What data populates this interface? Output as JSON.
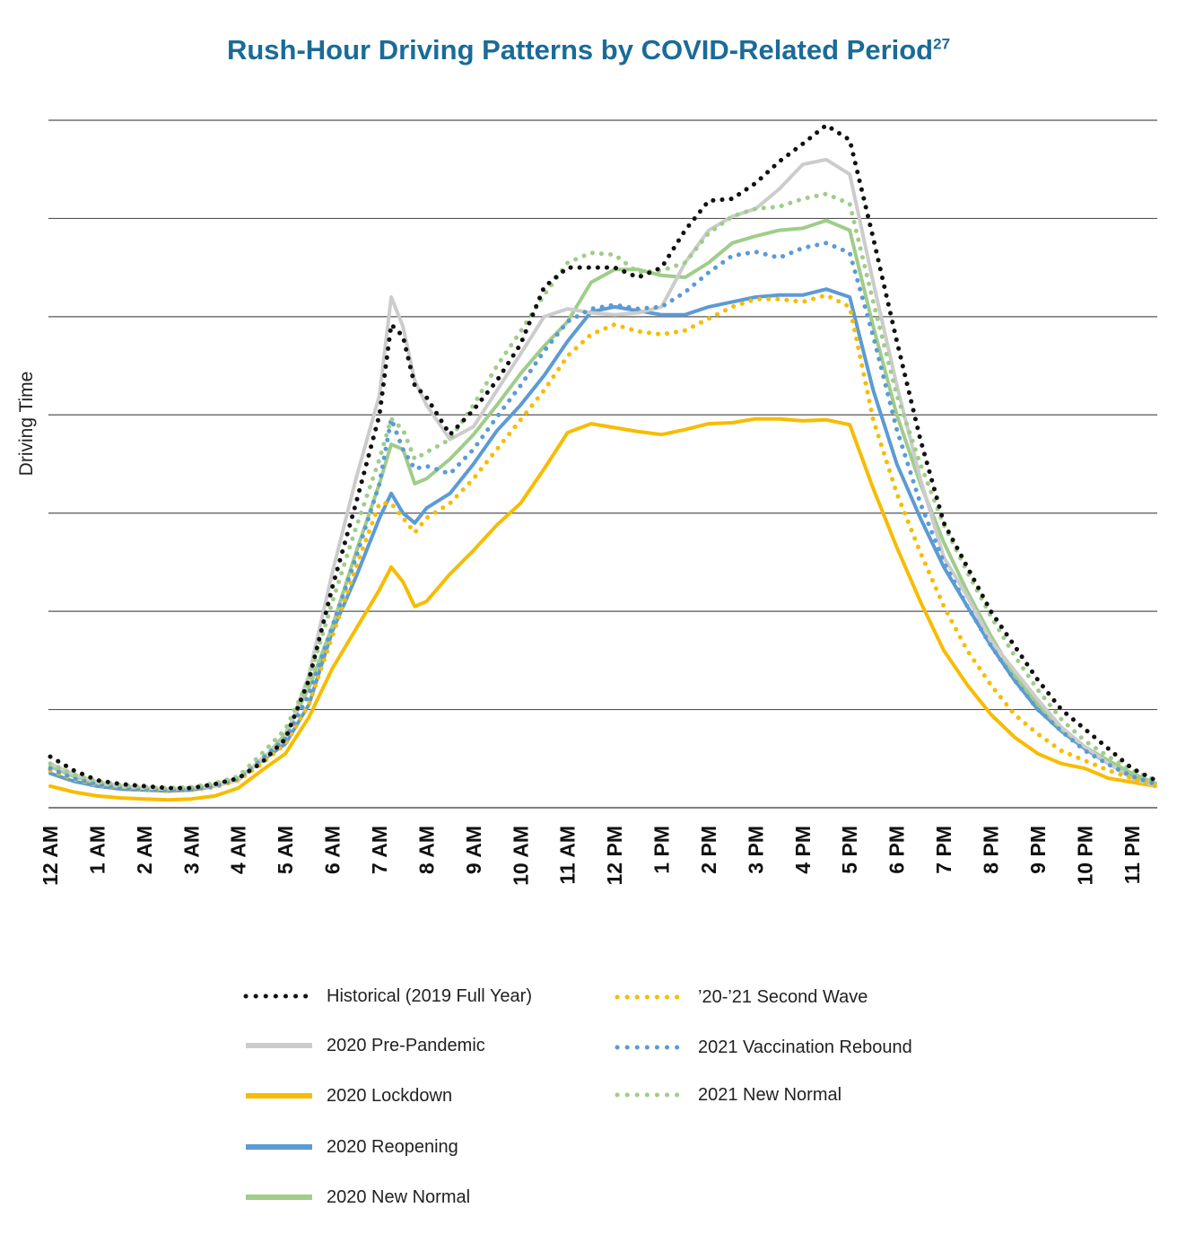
{
  "colors": {
    "historical": "#111111",
    "pre_pandemic": "#cccccc",
    "lockdown": "#f7bc00",
    "reopening": "#5b9bd5",
    "new_normal_2020": "#9fcd8a",
    "second_wave": "#f7bc00",
    "vaccination": "#5b9bd5",
    "new_normal_2021": "#9fcd8a",
    "title": "#1a6b98",
    "grid": "#555555"
  },
  "chart_data": {
    "type": "line",
    "title": "Rush-Hour Driving Patterns by COVID-Related Period",
    "title_footnote": "27",
    "xlabel": "",
    "ylabel": "Driving Time",
    "ylim": [
      0,
      7
    ],
    "grid": true,
    "legend_position": "bottom",
    "categories": [
      "12 AM",
      "1 AM",
      "2 AM",
      "3 AM",
      "4 AM",
      "5 AM",
      "6 AM",
      "7 AM",
      "8 AM",
      "9 AM",
      "10 AM",
      "11 AM",
      "12 PM",
      "1 PM",
      "2 PM",
      "3 PM",
      "4 PM",
      "5 PM",
      "6 PM",
      "7 PM",
      "8 PM",
      "9 PM",
      "10 PM",
      "11 PM"
    ],
    "x": [
      0,
      0.5,
      1,
      1.5,
      2,
      2.5,
      3,
      3.5,
      4,
      4.5,
      5,
      5.5,
      6,
      6.5,
      7,
      7.25,
      7.5,
      7.75,
      8,
      8.5,
      9,
      9.5,
      10,
      10.5,
      11,
      11.5,
      12,
      12.5,
      13,
      13.5,
      14,
      14.5,
      15,
      15.5,
      16,
      16.5,
      17,
      17.5,
      18,
      18.5,
      19,
      19.5,
      20,
      20.5,
      21,
      21.5,
      22,
      22.5,
      23,
      23.5
    ],
    "series": [
      {
        "name": "Historical (2019 Full Year)",
        "style": "dotted",
        "color_key": "historical",
        "values": [
          0.52,
          0.38,
          0.28,
          0.24,
          0.22,
          0.2,
          0.2,
          0.24,
          0.3,
          0.46,
          0.7,
          1.3,
          2.25,
          3.1,
          4.0,
          4.92,
          4.8,
          4.3,
          4.18,
          3.8,
          4.05,
          4.35,
          4.72,
          5.3,
          5.5,
          5.5,
          5.5,
          5.4,
          5.5,
          5.88,
          6.18,
          6.2,
          6.36,
          6.58,
          6.76,
          6.95,
          6.8,
          5.8,
          4.75,
          3.75,
          2.9,
          2.45,
          2.0,
          1.65,
          1.3,
          1.0,
          0.8,
          0.6,
          0.4,
          0.28
        ]
      },
      {
        "name": "2020 Pre-Pandemic",
        "style": "solid",
        "color_key": "pre_pandemic",
        "values": [
          0.45,
          0.34,
          0.26,
          0.22,
          0.2,
          0.19,
          0.2,
          0.22,
          0.28,
          0.5,
          0.7,
          1.35,
          2.4,
          3.35,
          4.2,
          5.2,
          4.9,
          4.35,
          4.1,
          3.75,
          3.88,
          4.25,
          4.62,
          5.0,
          5.08,
          5.04,
          5.02,
          5.04,
          5.1,
          5.55,
          5.88,
          6.02,
          6.1,
          6.3,
          6.55,
          6.6,
          6.45,
          5.35,
          4.3,
          3.35,
          2.55,
          2.15,
          1.7,
          1.4,
          1.1,
          0.82,
          0.62,
          0.45,
          0.3,
          0.22
        ]
      },
      {
        "name": "2020 Lockdown",
        "style": "solid",
        "color_key": "lockdown",
        "values": [
          0.22,
          0.16,
          0.12,
          0.1,
          0.09,
          0.08,
          0.09,
          0.12,
          0.2,
          0.38,
          0.55,
          0.92,
          1.42,
          1.82,
          2.22,
          2.45,
          2.3,
          2.05,
          2.1,
          2.38,
          2.62,
          2.88,
          3.1,
          3.45,
          3.82,
          3.91,
          3.87,
          3.83,
          3.8,
          3.85,
          3.91,
          3.92,
          3.96,
          3.96,
          3.94,
          3.95,
          3.9,
          3.25,
          2.65,
          2.1,
          1.6,
          1.25,
          0.95,
          0.72,
          0.55,
          0.45,
          0.4,
          0.3,
          0.26,
          0.22
        ]
      },
      {
        "name": "2020 Reopening",
        "style": "solid",
        "color_key": "reopening",
        "values": [
          0.35,
          0.27,
          0.22,
          0.19,
          0.18,
          0.17,
          0.18,
          0.22,
          0.3,
          0.48,
          0.65,
          1.05,
          1.8,
          2.35,
          2.95,
          3.2,
          3.0,
          2.9,
          3.05,
          3.2,
          3.5,
          3.84,
          4.1,
          4.4,
          4.75,
          5.05,
          5.1,
          5.06,
          5.02,
          5.02,
          5.1,
          5.15,
          5.2,
          5.22,
          5.22,
          5.28,
          5.2,
          4.25,
          3.5,
          2.95,
          2.45,
          2.05,
          1.65,
          1.3,
          1.0,
          0.78,
          0.6,
          0.45,
          0.32,
          0.22
        ]
      },
      {
        "name": "2020 New Normal",
        "style": "solid",
        "color_key": "new_normal_2020",
        "values": [
          0.42,
          0.32,
          0.25,
          0.21,
          0.2,
          0.19,
          0.2,
          0.23,
          0.3,
          0.48,
          0.75,
          1.22,
          1.85,
          2.6,
          3.3,
          3.7,
          3.65,
          3.3,
          3.35,
          3.55,
          3.8,
          4.1,
          4.42,
          4.7,
          4.95,
          5.35,
          5.48,
          5.48,
          5.42,
          5.4,
          5.55,
          5.75,
          5.82,
          5.88,
          5.9,
          5.98,
          5.88,
          4.9,
          4.0,
          3.3,
          2.7,
          2.2,
          1.75,
          1.35,
          1.05,
          0.8,
          0.62,
          0.48,
          0.35,
          0.25
        ]
      },
      {
        "name": "’20-’21 Second Wave",
        "style": "dotted",
        "color_key": "second_wave",
        "values": [
          0.38,
          0.29,
          0.23,
          0.2,
          0.18,
          0.17,
          0.18,
          0.21,
          0.28,
          0.45,
          0.65,
          1.05,
          1.75,
          2.45,
          3.1,
          3.1,
          2.95,
          2.8,
          2.95,
          3.1,
          3.35,
          3.65,
          3.95,
          4.25,
          4.6,
          4.82,
          4.92,
          4.85,
          4.82,
          4.86,
          4.98,
          5.1,
          5.18,
          5.18,
          5.15,
          5.22,
          5.1,
          3.95,
          3.2,
          2.6,
          2.05,
          1.6,
          1.25,
          0.95,
          0.75,
          0.58,
          0.48,
          0.38,
          0.3,
          0.22
        ]
      },
      {
        "name": "2021 Vaccination Rebound",
        "style": "dotted",
        "color_key": "vaccination",
        "values": [
          0.4,
          0.3,
          0.24,
          0.2,
          0.19,
          0.18,
          0.19,
          0.22,
          0.3,
          0.5,
          0.7,
          1.15,
          1.85,
          2.55,
          3.3,
          3.96,
          3.65,
          3.45,
          3.48,
          3.4,
          3.65,
          3.98,
          4.3,
          4.65,
          4.95,
          5.08,
          5.12,
          5.08,
          5.1,
          5.25,
          5.45,
          5.62,
          5.66,
          5.6,
          5.7,
          5.75,
          5.65,
          4.8,
          3.85,
          3.1,
          2.5,
          2.05,
          1.65,
          1.3,
          1.0,
          0.78,
          0.58,
          0.44,
          0.32,
          0.24
        ]
      },
      {
        "name": "2021 New Normal",
        "style": "dotted",
        "color_key": "new_normal_2021",
        "values": [
          0.45,
          0.34,
          0.27,
          0.23,
          0.21,
          0.2,
          0.21,
          0.25,
          0.32,
          0.55,
          0.8,
          1.3,
          2.1,
          2.85,
          3.55,
          3.96,
          3.85,
          3.55,
          3.62,
          3.75,
          4.1,
          4.5,
          4.85,
          5.22,
          5.55,
          5.65,
          5.63,
          5.45,
          5.47,
          5.55,
          5.85,
          6.02,
          6.1,
          6.12,
          6.2,
          6.25,
          6.15,
          5.15,
          4.2,
          3.5,
          2.88,
          2.4,
          1.95,
          1.55,
          1.2,
          0.9,
          0.68,
          0.52,
          0.38,
          0.28
        ]
      }
    ]
  }
}
